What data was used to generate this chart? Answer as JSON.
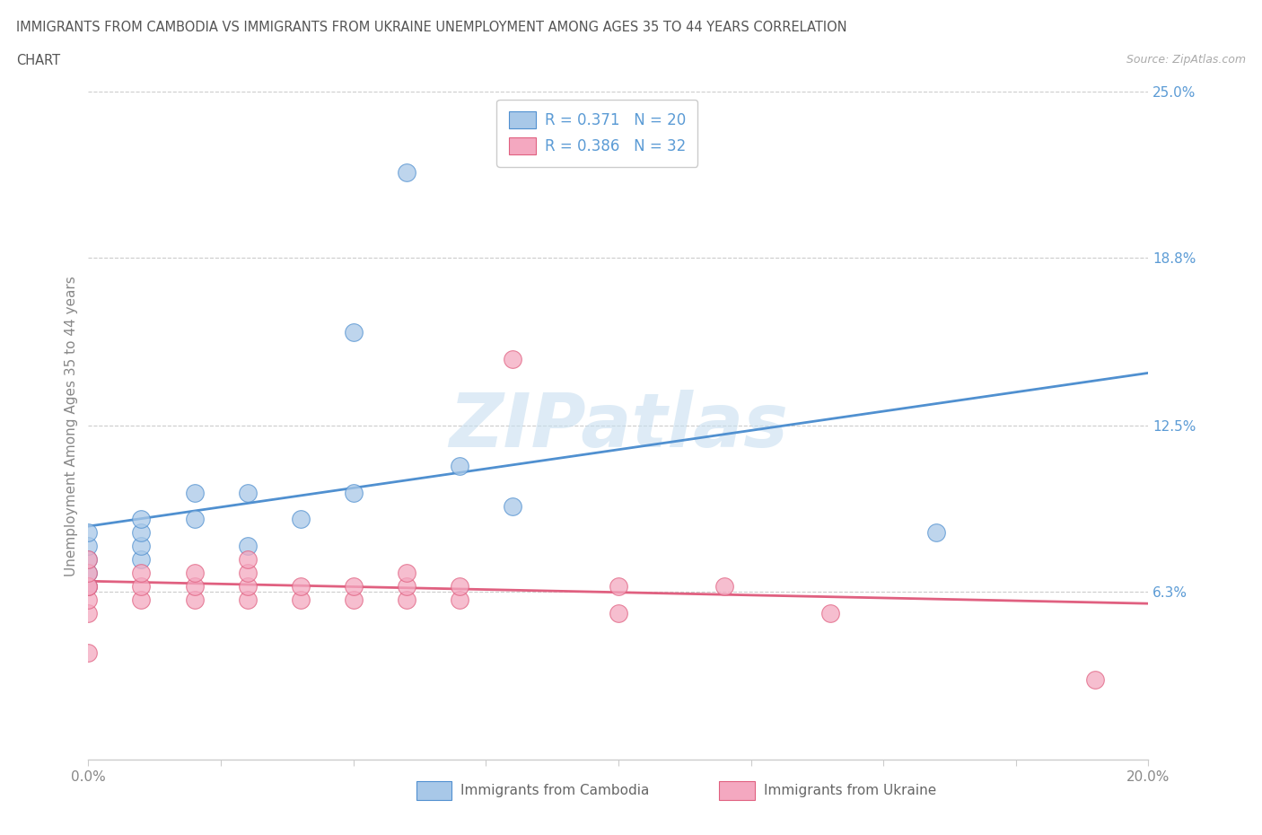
{
  "title_line1": "IMMIGRANTS FROM CAMBODIA VS IMMIGRANTS FROM UKRAINE UNEMPLOYMENT AMONG AGES 35 TO 44 YEARS CORRELATION",
  "title_line2": "CHART",
  "source": "Source: ZipAtlas.com",
  "ylabel": "Unemployment Among Ages 35 to 44 years",
  "xlim": [
    0.0,
    0.2
  ],
  "ylim": [
    0.0,
    0.25
  ],
  "yticks": [
    0.0,
    0.063,
    0.125,
    0.188,
    0.25
  ],
  "ytick_labels": [
    "",
    "6.3%",
    "12.5%",
    "18.8%",
    "25.0%"
  ],
  "xticks": [
    0.0,
    0.025,
    0.05,
    0.075,
    0.1,
    0.125,
    0.15,
    0.175,
    0.2
  ],
  "xtick_labels": [
    "0.0%",
    "",
    "",
    "",
    "",
    "",
    "",
    "",
    "20.0%"
  ],
  "legend_R1": "R = 0.371",
  "legend_N1": "N = 20",
  "legend_R2": "R = 0.386",
  "legend_N2": "N = 32",
  "cambodia_color": "#a8c8e8",
  "ukraine_color": "#f4a8c0",
  "cambodia_line_color": "#5090d0",
  "ukraine_line_color": "#e06080",
  "watermark_color": "#c8dff0",
  "cambodia_x": [
    0.0,
    0.0,
    0.0,
    0.0,
    0.0,
    0.01,
    0.01,
    0.01,
    0.01,
    0.02,
    0.02,
    0.03,
    0.03,
    0.04,
    0.05,
    0.05,
    0.06,
    0.07,
    0.08,
    0.16
  ],
  "cambodia_y": [
    0.065,
    0.07,
    0.075,
    0.08,
    0.085,
    0.075,
    0.08,
    0.085,
    0.09,
    0.09,
    0.1,
    0.08,
    0.1,
    0.09,
    0.16,
    0.1,
    0.22,
    0.11,
    0.095,
    0.085
  ],
  "ukraine_x": [
    0.0,
    0.0,
    0.0,
    0.0,
    0.0,
    0.0,
    0.0,
    0.01,
    0.01,
    0.01,
    0.02,
    0.02,
    0.02,
    0.03,
    0.03,
    0.03,
    0.03,
    0.04,
    0.04,
    0.05,
    0.05,
    0.06,
    0.06,
    0.06,
    0.07,
    0.07,
    0.08,
    0.1,
    0.1,
    0.12,
    0.14,
    0.19
  ],
  "ukraine_y": [
    0.055,
    0.06,
    0.065,
    0.065,
    0.07,
    0.075,
    0.04,
    0.06,
    0.065,
    0.07,
    0.06,
    0.065,
    0.07,
    0.06,
    0.065,
    0.07,
    0.075,
    0.06,
    0.065,
    0.06,
    0.065,
    0.06,
    0.065,
    0.07,
    0.06,
    0.065,
    0.15,
    0.055,
    0.065,
    0.065,
    0.055,
    0.03
  ]
}
